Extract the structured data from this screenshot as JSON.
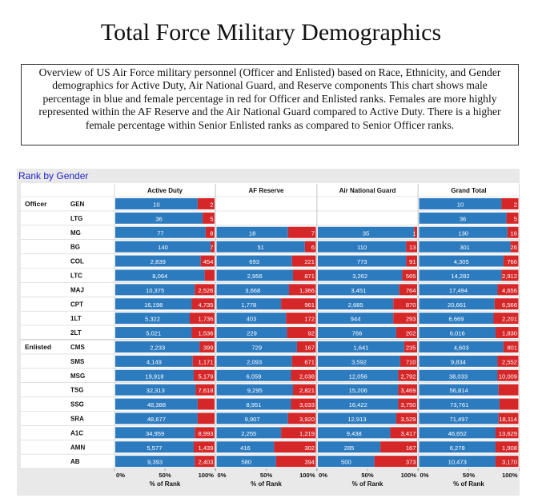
{
  "page": {
    "title": "Total Force Military Demographics",
    "description": "Overview of US Air Force military personnel (Officer and Enlisted) based on Race, Ethnicity, and Gender demographics for Active Duty, Air National Guard, and Reserve components This chart shows male percentage in blue and female percentage in red for Officer and Enlisted ranks. Females are more highly represented within the AF Reserve and the Air National Guard compared to Active Duty. There is a higher female percentage within Senior Enlisted ranks as compared to Senior Officer ranks.",
    "section_title": "Rank by Gender"
  },
  "colors": {
    "male": "#2c7bbf",
    "female": "#d62728",
    "grid": "#d0d0d0",
    "frame": "#e9e9e9"
  },
  "chart_data": {
    "type": "bar",
    "orientation": "horizontal-stacked-100",
    "title": "Rank by Gender",
    "xlabel": "% of Rank",
    "xticks": [
      "0%",
      "50%",
      "100%"
    ],
    "groups": [
      {
        "name": "Officer",
        "ranks": [
          "GEN",
          "LTG",
          "MG",
          "BG",
          "COL",
          "LTC",
          "MAJ",
          "CPT",
          "1LT",
          "2LT"
        ]
      },
      {
        "name": "Enlisted",
        "ranks": [
          "CMS",
          "SMS",
          "MSG",
          "TSG",
          "SSG",
          "SRA",
          "A1C",
          "AMN",
          "AB"
        ]
      }
    ],
    "categories": [
      "GEN",
      "LTG",
      "MG",
      "BG",
      "COL",
      "LTC",
      "MAJ",
      "CPT",
      "1LT",
      "2LT",
      "CMS",
      "SMS",
      "MSG",
      "TSG",
      "SSG",
      "SRA",
      "A1C",
      "AMN",
      "AB"
    ],
    "panels": [
      {
        "name": "Active Duty",
        "male": [
          10,
          36,
          77,
          140,
          2839,
          8064,
          10375,
          16198,
          5322,
          5021,
          2233,
          4149,
          19918,
          32313,
          48388,
          48677,
          34959,
          5577,
          9393
        ],
        "female": [
          2,
          5,
          8,
          7,
          454,
          null,
          2526,
          4735,
          1736,
          1536,
          399,
          1171,
          5179,
          7618,
          null,
          null,
          8993,
          1439,
          2403
        ]
      },
      {
        "name": "AF Reserve",
        "male": [
          null,
          null,
          18,
          51,
          693,
          2956,
          3668,
          1778,
          403,
          229,
          729,
          2093,
          6059,
          9295,
          8951,
          9907,
          2255,
          416,
          580
        ],
        "female": [
          null,
          null,
          7,
          6,
          221,
          871,
          1366,
          961,
          172,
          92,
          167,
          671,
          2038,
          2821,
          3033,
          3920,
          1219,
          302,
          394
        ]
      },
      {
        "name": "Air National Guard",
        "male": [
          null,
          null,
          35,
          110,
          773,
          3262,
          3451,
          2685,
          944,
          766,
          1641,
          3592,
          12056,
          15206,
          16422,
          12913,
          9438,
          285,
          500
        ],
        "female": [
          null,
          null,
          1,
          13,
          91,
          565,
          764,
          870,
          293,
          202,
          235,
          710,
          2792,
          3469,
          3750,
          3529,
          3417,
          167,
          373
        ]
      },
      {
        "name": "Grand Total",
        "male": [
          10,
          36,
          130,
          301,
          4305,
          14282,
          17494,
          20661,
          6669,
          6016,
          4603,
          9834,
          38033,
          56814,
          73761,
          71497,
          46652,
          6278,
          10473
        ],
        "female": [
          2,
          5,
          16,
          26,
          766,
          2912,
          4656,
          6566,
          2201,
          1830,
          801,
          2552,
          10009,
          null,
          null,
          18114,
          13629,
          1908,
          3170
        ]
      }
    ],
    "female_share": {
      "Active Duty": [
        0.17,
        0.12,
        0.09,
        0.04,
        0.14,
        0.1,
        0.2,
        0.23,
        0.25,
        0.23,
        0.15,
        0.22,
        0.21,
        0.19,
        0.17,
        0.17,
        0.2,
        0.21,
        0.2
      ],
      "AF Reserve": [
        null,
        null,
        0.28,
        0.11,
        0.24,
        0.23,
        0.27,
        0.35,
        0.3,
        0.29,
        0.19,
        0.24,
        0.25,
        0.23,
        0.25,
        0.28,
        0.35,
        0.42,
        0.4
      ],
      "Air National Guard": [
        null,
        null,
        0.03,
        0.11,
        0.11,
        0.15,
        0.18,
        0.24,
        0.24,
        0.21,
        0.13,
        0.17,
        0.19,
        0.19,
        0.19,
        0.21,
        0.27,
        0.37,
        0.43
      ],
      "Grand Total": [
        0.17,
        0.12,
        0.11,
        0.08,
        0.15,
        0.17,
        0.21,
        0.24,
        0.25,
        0.23,
        0.15,
        0.21,
        0.21,
        0.2,
        0.19,
        0.2,
        0.23,
        0.23,
        0.23
      ]
    }
  }
}
